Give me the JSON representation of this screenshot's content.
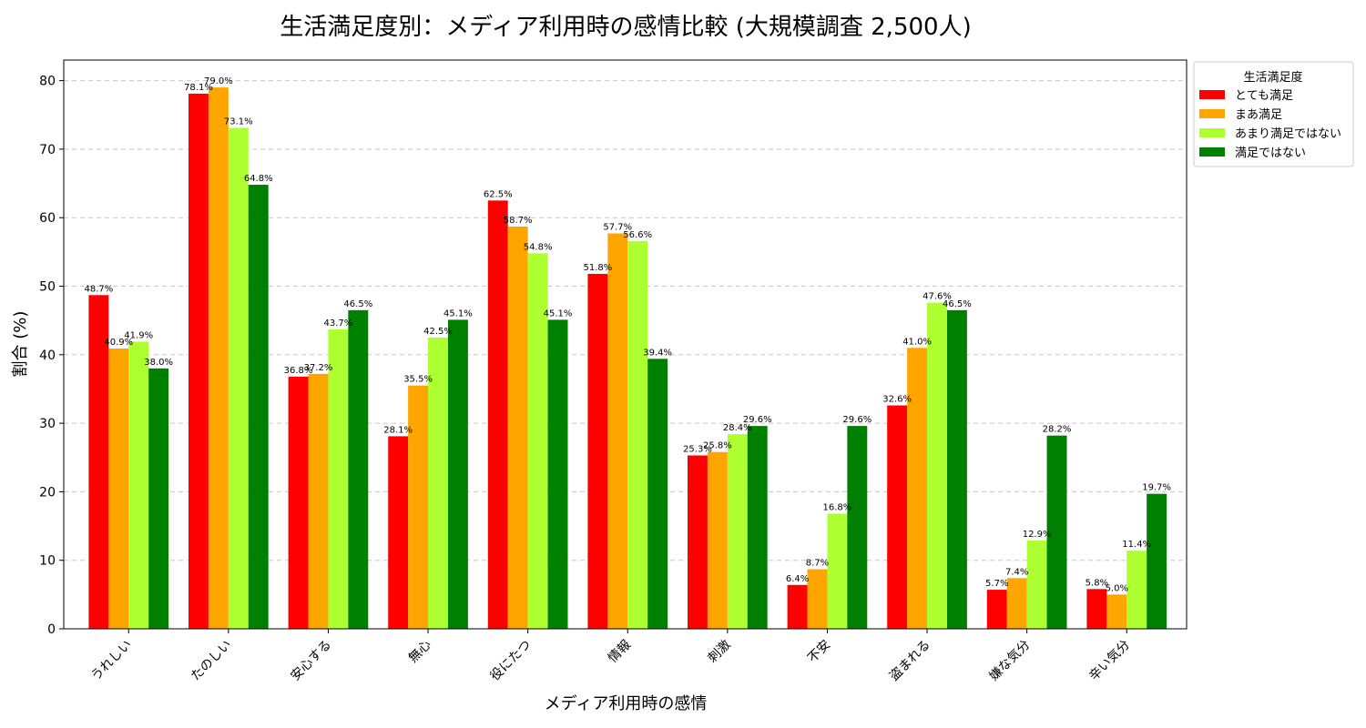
{
  "chart_data": {
    "type": "bar",
    "title": "生活満足度別：メディア利用時の感情比較 (大規模調査 2,500人)",
    "xlabel": "メディア利用時の感情",
    "ylabel": "割合 (%)",
    "ylim": [
      0,
      83
    ],
    "yticks": [
      0,
      10,
      20,
      30,
      40,
      50,
      60,
      70,
      80
    ],
    "grid": true,
    "legend_title": "生活満足度",
    "legend_position": "outside-top-right",
    "categories": [
      "うれしい",
      "たのしい",
      "安心する",
      "無心",
      "役にたつ",
      "情報",
      "刺激",
      "不安",
      "盗まれる",
      "嫌な気分",
      "辛い気分"
    ],
    "series": [
      {
        "name": "とても満足",
        "color": "#ff0000",
        "values": [
          48.7,
          78.1,
          36.8,
          28.1,
          62.5,
          51.8,
          25.3,
          6.4,
          32.6,
          5.7,
          5.8
        ]
      },
      {
        "name": "まあ満足",
        "color": "#ffa500",
        "values": [
          40.9,
          79.0,
          37.2,
          35.5,
          58.7,
          57.7,
          25.8,
          8.7,
          41.0,
          7.4,
          5.0
        ]
      },
      {
        "name": "あまり満足ではない",
        "color": "#adff2f",
        "values": [
          41.9,
          73.1,
          43.7,
          42.5,
          54.8,
          56.6,
          28.4,
          16.8,
          47.6,
          12.9,
          11.4
        ]
      },
      {
        "name": "満足ではない",
        "color": "#008000",
        "values": [
          38.0,
          64.8,
          46.5,
          45.1,
          45.1,
          39.4,
          29.6,
          29.6,
          46.5,
          28.2,
          19.7
        ]
      }
    ]
  }
}
